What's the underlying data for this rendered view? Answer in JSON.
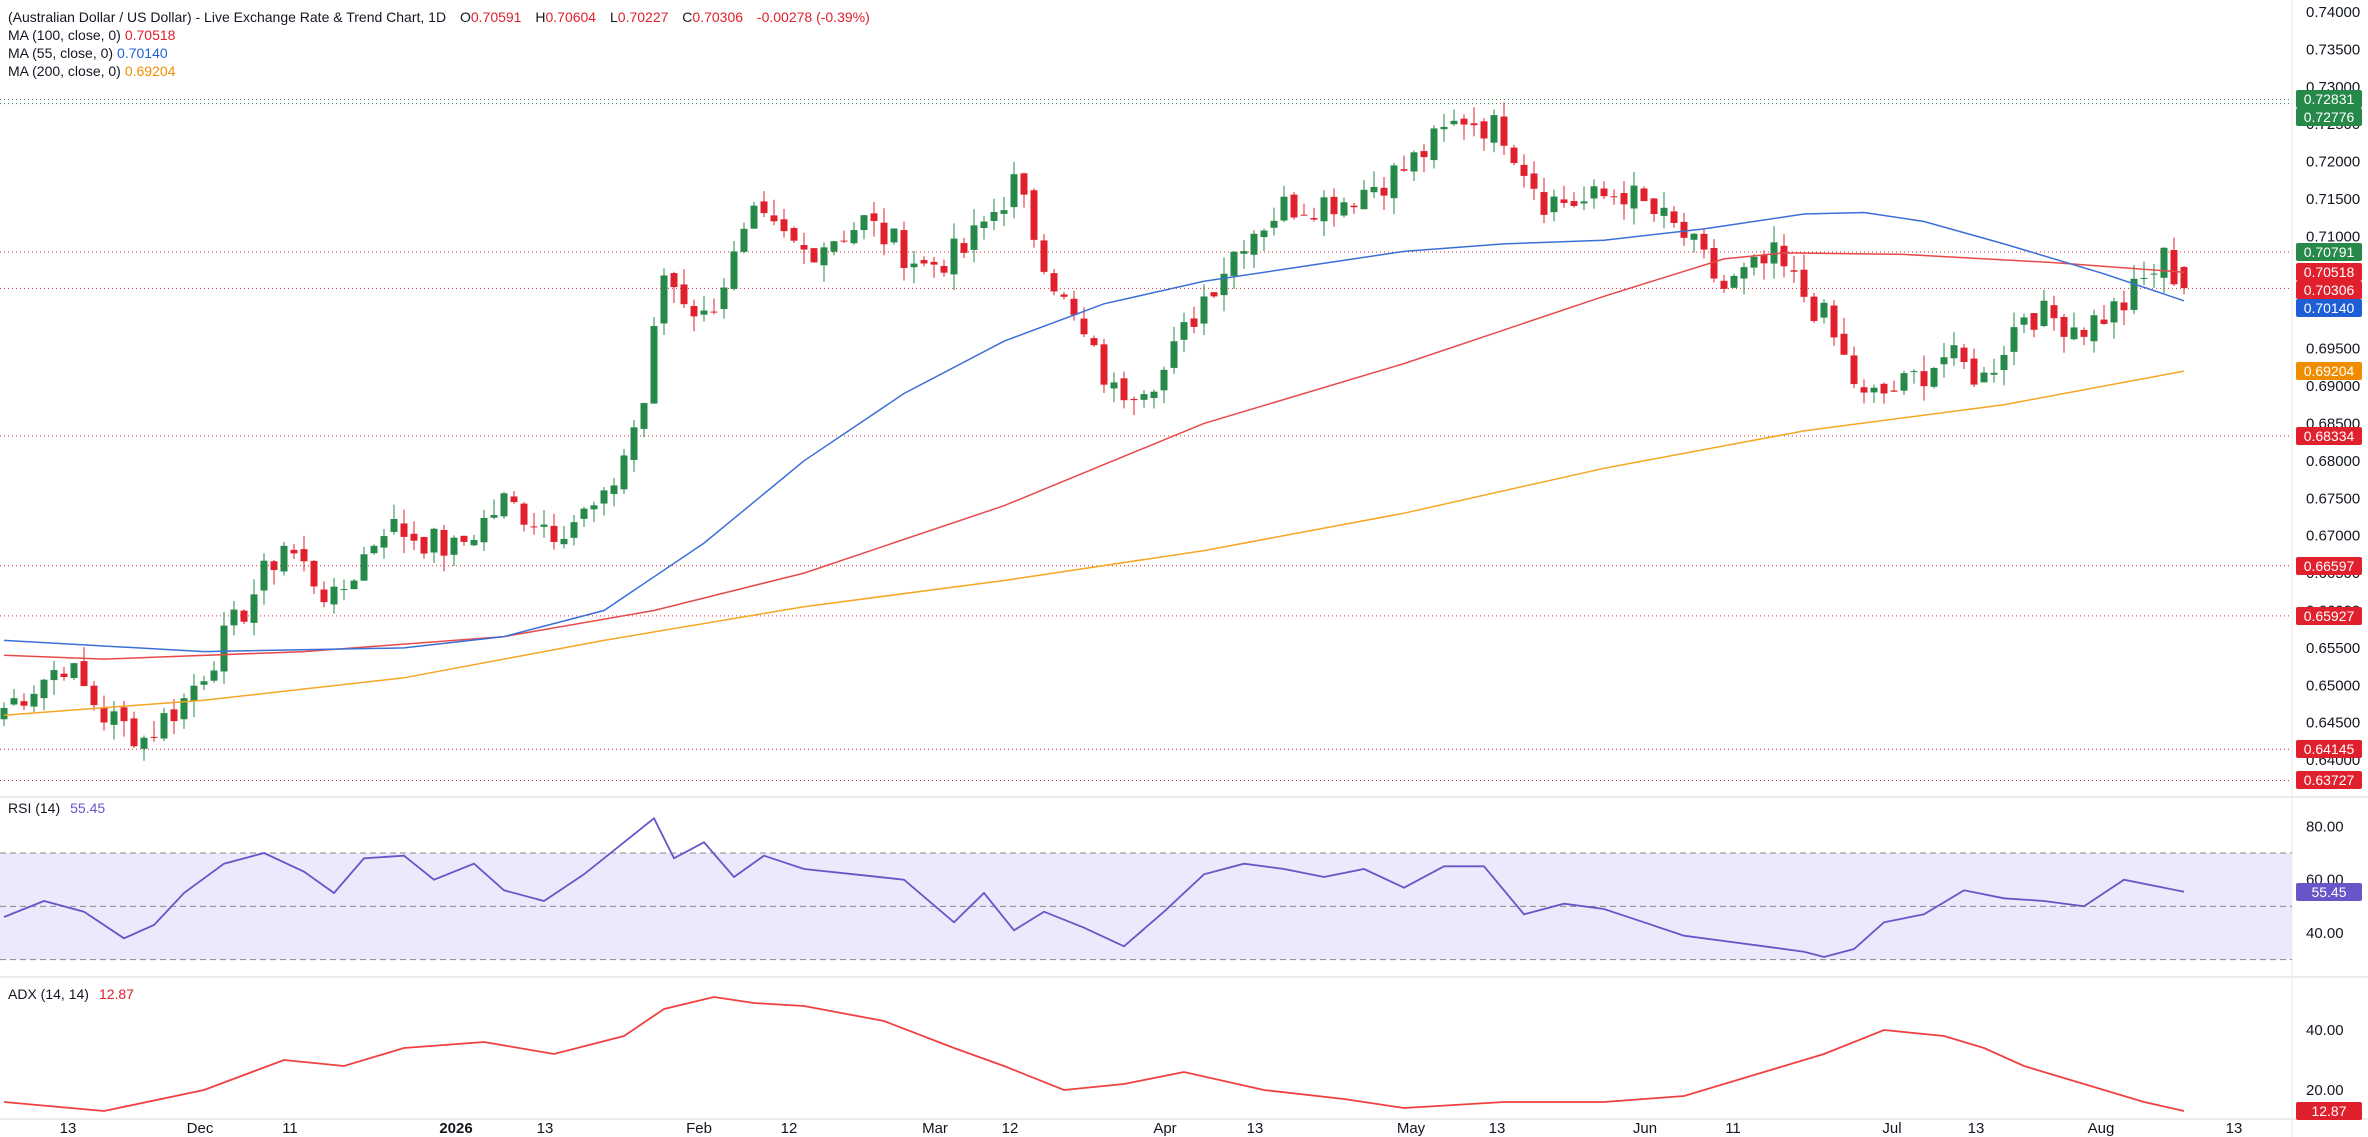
{
  "header": {
    "title": "(Australian Dollar / US Dollar) - Live Exchange Rate & Trend Chart, 1D",
    "ohlc": {
      "o_label": "O",
      "o": "0.70591",
      "h_label": "H",
      "h": "0.70604",
      "l_label": "L",
      "l": "0.70227",
      "c_label": "C",
      "c": "0.70306",
      "change": "-0.00278 (-0.39%)"
    },
    "ma100_label": "MA (100, close, 0)",
    "ma100_value": "0.70518",
    "ma55_label": "MA (55, close, 0)",
    "ma55_value": "0.70140",
    "ma200_label": "MA (200, close, 0)",
    "ma200_value": "0.69204"
  },
  "colors": {
    "up": "#26894a",
    "down": "#e0202c",
    "ma100": "#e84a4a",
    "ma55": "#3b6fd8",
    "ma200": "#f5a623",
    "rsi": "#6a55c8",
    "adx": "#f04040"
  },
  "chart_data": [
    {
      "type": "candlestick",
      "title": "Australian Dollar / US Dollar 1D",
      "ylim": [
        0.636,
        0.74
      ],
      "price_ticks": [
        "0.74000",
        "0.73500",
        "0.73000",
        "0.72500",
        "0.72000",
        "0.71500",
        "0.71000",
        "0.70500",
        "0.70000",
        "0.69500",
        "0.69000",
        "0.68500",
        "0.68000",
        "0.67500",
        "0.67000",
        "0.66500",
        "0.66000",
        "0.65500",
        "0.65000",
        "0.64500",
        "0.64000"
      ],
      "date_labels": [
        "13",
        "Dec",
        "11",
        "2026",
        "13",
        "Feb",
        "12",
        "Mar",
        "12",
        "Apr",
        "13",
        "May",
        "13",
        "Jun",
        "11",
        "Jul",
        "13",
        "Aug",
        "13"
      ],
      "level_lines": [
        0.72831,
        0.72776,
        0.70791,
        0.70306,
        0.68334,
        0.66597,
        0.65927,
        0.64145,
        0.63727
      ],
      "price_badges": [
        {
          "label": "0.72831",
          "value": 0.72831,
          "color": "#26894a"
        },
        {
          "label": "0.72776",
          "value": 0.72776,
          "color": "#26894a"
        },
        {
          "label": "0.70791",
          "value": 0.70791,
          "color": "#26894a"
        },
        {
          "label": "0.70518",
          "value": 0.70518,
          "color": "#e0202c"
        },
        {
          "label": "0.70306",
          "value": 0.70306,
          "color": "#e0202c"
        },
        {
          "label": "0.70140",
          "value": 0.7014,
          "color": "#1f5fd6"
        },
        {
          "label": "0.69204",
          "value": 0.69204,
          "color": "#f08c00"
        },
        {
          "label": "0.68334",
          "value": 0.68334,
          "color": "#e0202c"
        },
        {
          "label": "0.66597",
          "value": 0.66597,
          "color": "#e0202c"
        },
        {
          "label": "0.65927",
          "value": 0.65927,
          "color": "#e0202c"
        },
        {
          "label": "0.64145",
          "value": 0.64145,
          "color": "#e0202c"
        },
        {
          "label": "0.63727",
          "value": 0.63727,
          "color": "#e0202c"
        }
      ],
      "anchors": [
        {
          "i": 0,
          "p": 0.647
        },
        {
          "i": 6,
          "p": 0.653
        },
        {
          "i": 10,
          "p": 0.646
        },
        {
          "i": 14,
          "p": 0.643
        },
        {
          "i": 18,
          "p": 0.648
        },
        {
          "i": 23,
          "p": 0.658
        },
        {
          "i": 28,
          "p": 0.669
        },
        {
          "i": 33,
          "p": 0.661
        },
        {
          "i": 38,
          "p": 0.6715
        },
        {
          "i": 45,
          "p": 0.668
        },
        {
          "i": 50,
          "p": 0.6745
        },
        {
          "i": 55,
          "p": 0.671
        },
        {
          "i": 60,
          "p": 0.674
        },
        {
          "i": 64,
          "p": 0.688
        },
        {
          "i": 66,
          "p": 0.705
        },
        {
          "i": 70,
          "p": 0.699
        },
        {
          "i": 75,
          "p": 0.712
        },
        {
          "i": 80,
          "p": 0.708
        },
        {
          "i": 86,
          "p": 0.712
        },
        {
          "i": 92,
          "p": 0.706
        },
        {
          "i": 96,
          "p": 0.708
        },
        {
          "i": 101,
          "p": 0.717
        },
        {
          "i": 106,
          "p": 0.701
        },
        {
          "i": 111,
          "p": 0.689
        },
        {
          "i": 116,
          "p": 0.692
        },
        {
          "i": 120,
          "p": 0.702
        },
        {
          "i": 124,
          "p": 0.71
        },
        {
          "i": 128,
          "p": 0.714
        },
        {
          "i": 134,
          "p": 0.715
        },
        {
          "i": 140,
          "p": 0.719
        },
        {
          "i": 146,
          "p": 0.726
        },
        {
          "i": 150,
          "p": 0.724
        },
        {
          "i": 154,
          "p": 0.715
        },
        {
          "i": 158,
          "p": 0.7145
        },
        {
          "i": 162,
          "p": 0.716
        },
        {
          "i": 168,
          "p": 0.71
        },
        {
          "i": 172,
          "p": 0.703
        },
        {
          "i": 177,
          "p": 0.707
        },
        {
          "i": 182,
          "p": 0.699
        },
        {
          "i": 186,
          "p": 0.688
        },
        {
          "i": 190,
          "p": 0.69
        },
        {
          "i": 194,
          "p": 0.694
        },
        {
          "i": 198,
          "p": 0.691
        },
        {
          "i": 202,
          "p": 0.7
        },
        {
          "i": 208,
          "p": 0.698
        },
        {
          "i": 212,
          "p": 0.701
        },
        {
          "i": 216,
          "p": 0.707
        },
        {
          "i": 218,
          "p": 0.7031
        }
      ],
      "ma55_points": [
        [
          0,
          0.656
        ],
        [
          20,
          0.6545
        ],
        [
          40,
          0.655
        ],
        [
          50,
          0.6565
        ],
        [
          60,
          0.66
        ],
        [
          70,
          0.669
        ],
        [
          80,
          0.68
        ],
        [
          90,
          0.689
        ],
        [
          100,
          0.696
        ],
        [
          110,
          0.701
        ],
        [
          120,
          0.704
        ],
        [
          130,
          0.706
        ],
        [
          140,
          0.708
        ],
        [
          150,
          0.709
        ],
        [
          160,
          0.7095
        ],
        [
          170,
          0.711
        ],
        [
          180,
          0.713
        ],
        [
          186,
          0.7132
        ],
        [
          192,
          0.712
        ],
        [
          200,
          0.709
        ],
        [
          210,
          0.705
        ],
        [
          218,
          0.7014
        ]
      ],
      "ma100_points": [
        [
          0,
          0.654
        ],
        [
          10,
          0.6535
        ],
        [
          30,
          0.6545
        ],
        [
          50,
          0.6565
        ],
        [
          65,
          0.66
        ],
        [
          80,
          0.665
        ],
        [
          100,
          0.674
        ],
        [
          120,
          0.685
        ],
        [
          140,
          0.693
        ],
        [
          160,
          0.702
        ],
        [
          172,
          0.707
        ],
        [
          178,
          0.7078
        ],
        [
          190,
          0.7076
        ],
        [
          205,
          0.7065
        ],
        [
          218,
          0.7052
        ]
      ],
      "ma200_points": [
        [
          0,
          0.646
        ],
        [
          20,
          0.648
        ],
        [
          40,
          0.651
        ],
        [
          60,
          0.656
        ],
        [
          80,
          0.6605
        ],
        [
          100,
          0.664
        ],
        [
          120,
          0.668
        ],
        [
          140,
          0.673
        ],
        [
          160,
          0.679
        ],
        [
          180,
          0.684
        ],
        [
          200,
          0.6875
        ],
        [
          218,
          0.692
        ]
      ]
    },
    {
      "type": "line",
      "title": "RSI (14)",
      "value_label": "55.45",
      "ylim": [
        28,
        88
      ],
      "ticks": [
        "80.00",
        "60.00",
        "40.00"
      ],
      "bands": [
        70,
        50,
        30
      ],
      "points": [
        [
          0,
          46
        ],
        [
          4,
          52
        ],
        [
          8,
          48
        ],
        [
          12,
          38
        ],
        [
          15,
          43
        ],
        [
          18,
          55
        ],
        [
          22,
          66
        ],
        [
          26,
          70
        ],
        [
          30,
          63
        ],
        [
          33,
          55
        ],
        [
          36,
          68
        ],
        [
          40,
          69
        ],
        [
          43,
          60
        ],
        [
          47,
          66
        ],
        [
          50,
          56
        ],
        [
          54,
          52
        ],
        [
          58,
          62
        ],
        [
          62,
          74
        ],
        [
          65,
          83
        ],
        [
          67,
          68
        ],
        [
          70,
          74
        ],
        [
          73,
          61
        ],
        [
          76,
          69
        ],
        [
          80,
          64
        ],
        [
          85,
          62
        ],
        [
          90,
          60
        ],
        [
          95,
          44
        ],
        [
          98,
          55
        ],
        [
          101,
          41
        ],
        [
          104,
          48
        ],
        [
          108,
          42
        ],
        [
          112,
          35
        ],
        [
          116,
          48
        ],
        [
          120,
          62
        ],
        [
          124,
          66
        ],
        [
          128,
          64
        ],
        [
          132,
          61
        ],
        [
          136,
          64
        ],
        [
          140,
          57
        ],
        [
          144,
          65
        ],
        [
          148,
          65
        ],
        [
          152,
          47
        ],
        [
          156,
          51
        ],
        [
          160,
          49
        ],
        [
          164,
          44
        ],
        [
          168,
          39
        ],
        [
          172,
          37
        ],
        [
          176,
          35
        ],
        [
          180,
          33
        ],
        [
          182,
          31
        ],
        [
          185,
          34
        ],
        [
          188,
          44
        ],
        [
          192,
          47
        ],
        [
          196,
          56
        ],
        [
          200,
          53
        ],
        [
          204,
          52
        ],
        [
          208,
          50
        ],
        [
          212,
          60
        ],
        [
          216,
          57
        ],
        [
          218,
          55.45
        ]
      ]
    },
    {
      "type": "line",
      "title": "ADX (14, 14)",
      "value_label": "12.87",
      "ylim": [
        10,
        55
      ],
      "ticks": [
        "40.00",
        "20.00"
      ],
      "points": [
        [
          0,
          16
        ],
        [
          10,
          13
        ],
        [
          20,
          20
        ],
        [
          28,
          30
        ],
        [
          34,
          28
        ],
        [
          40,
          34
        ],
        [
          48,
          36
        ],
        [
          55,
          32
        ],
        [
          62,
          38
        ],
        [
          66,
          47
        ],
        [
          71,
          51
        ],
        [
          75,
          49
        ],
        [
          80,
          48
        ],
        [
          88,
          43
        ],
        [
          95,
          34
        ],
        [
          100,
          28
        ],
        [
          106,
          20
        ],
        [
          112,
          22
        ],
        [
          118,
          26
        ],
        [
          126,
          20
        ],
        [
          134,
          17
        ],
        [
          140,
          14
        ],
        [
          150,
          16
        ],
        [
          160,
          16
        ],
        [
          168,
          18
        ],
        [
          176,
          26
        ],
        [
          182,
          32
        ],
        [
          188,
          40
        ],
        [
          194,
          38
        ],
        [
          198,
          34
        ],
        [
          202,
          28
        ],
        [
          208,
          22
        ],
        [
          214,
          16
        ],
        [
          218,
          13
        ]
      ]
    }
  ]
}
